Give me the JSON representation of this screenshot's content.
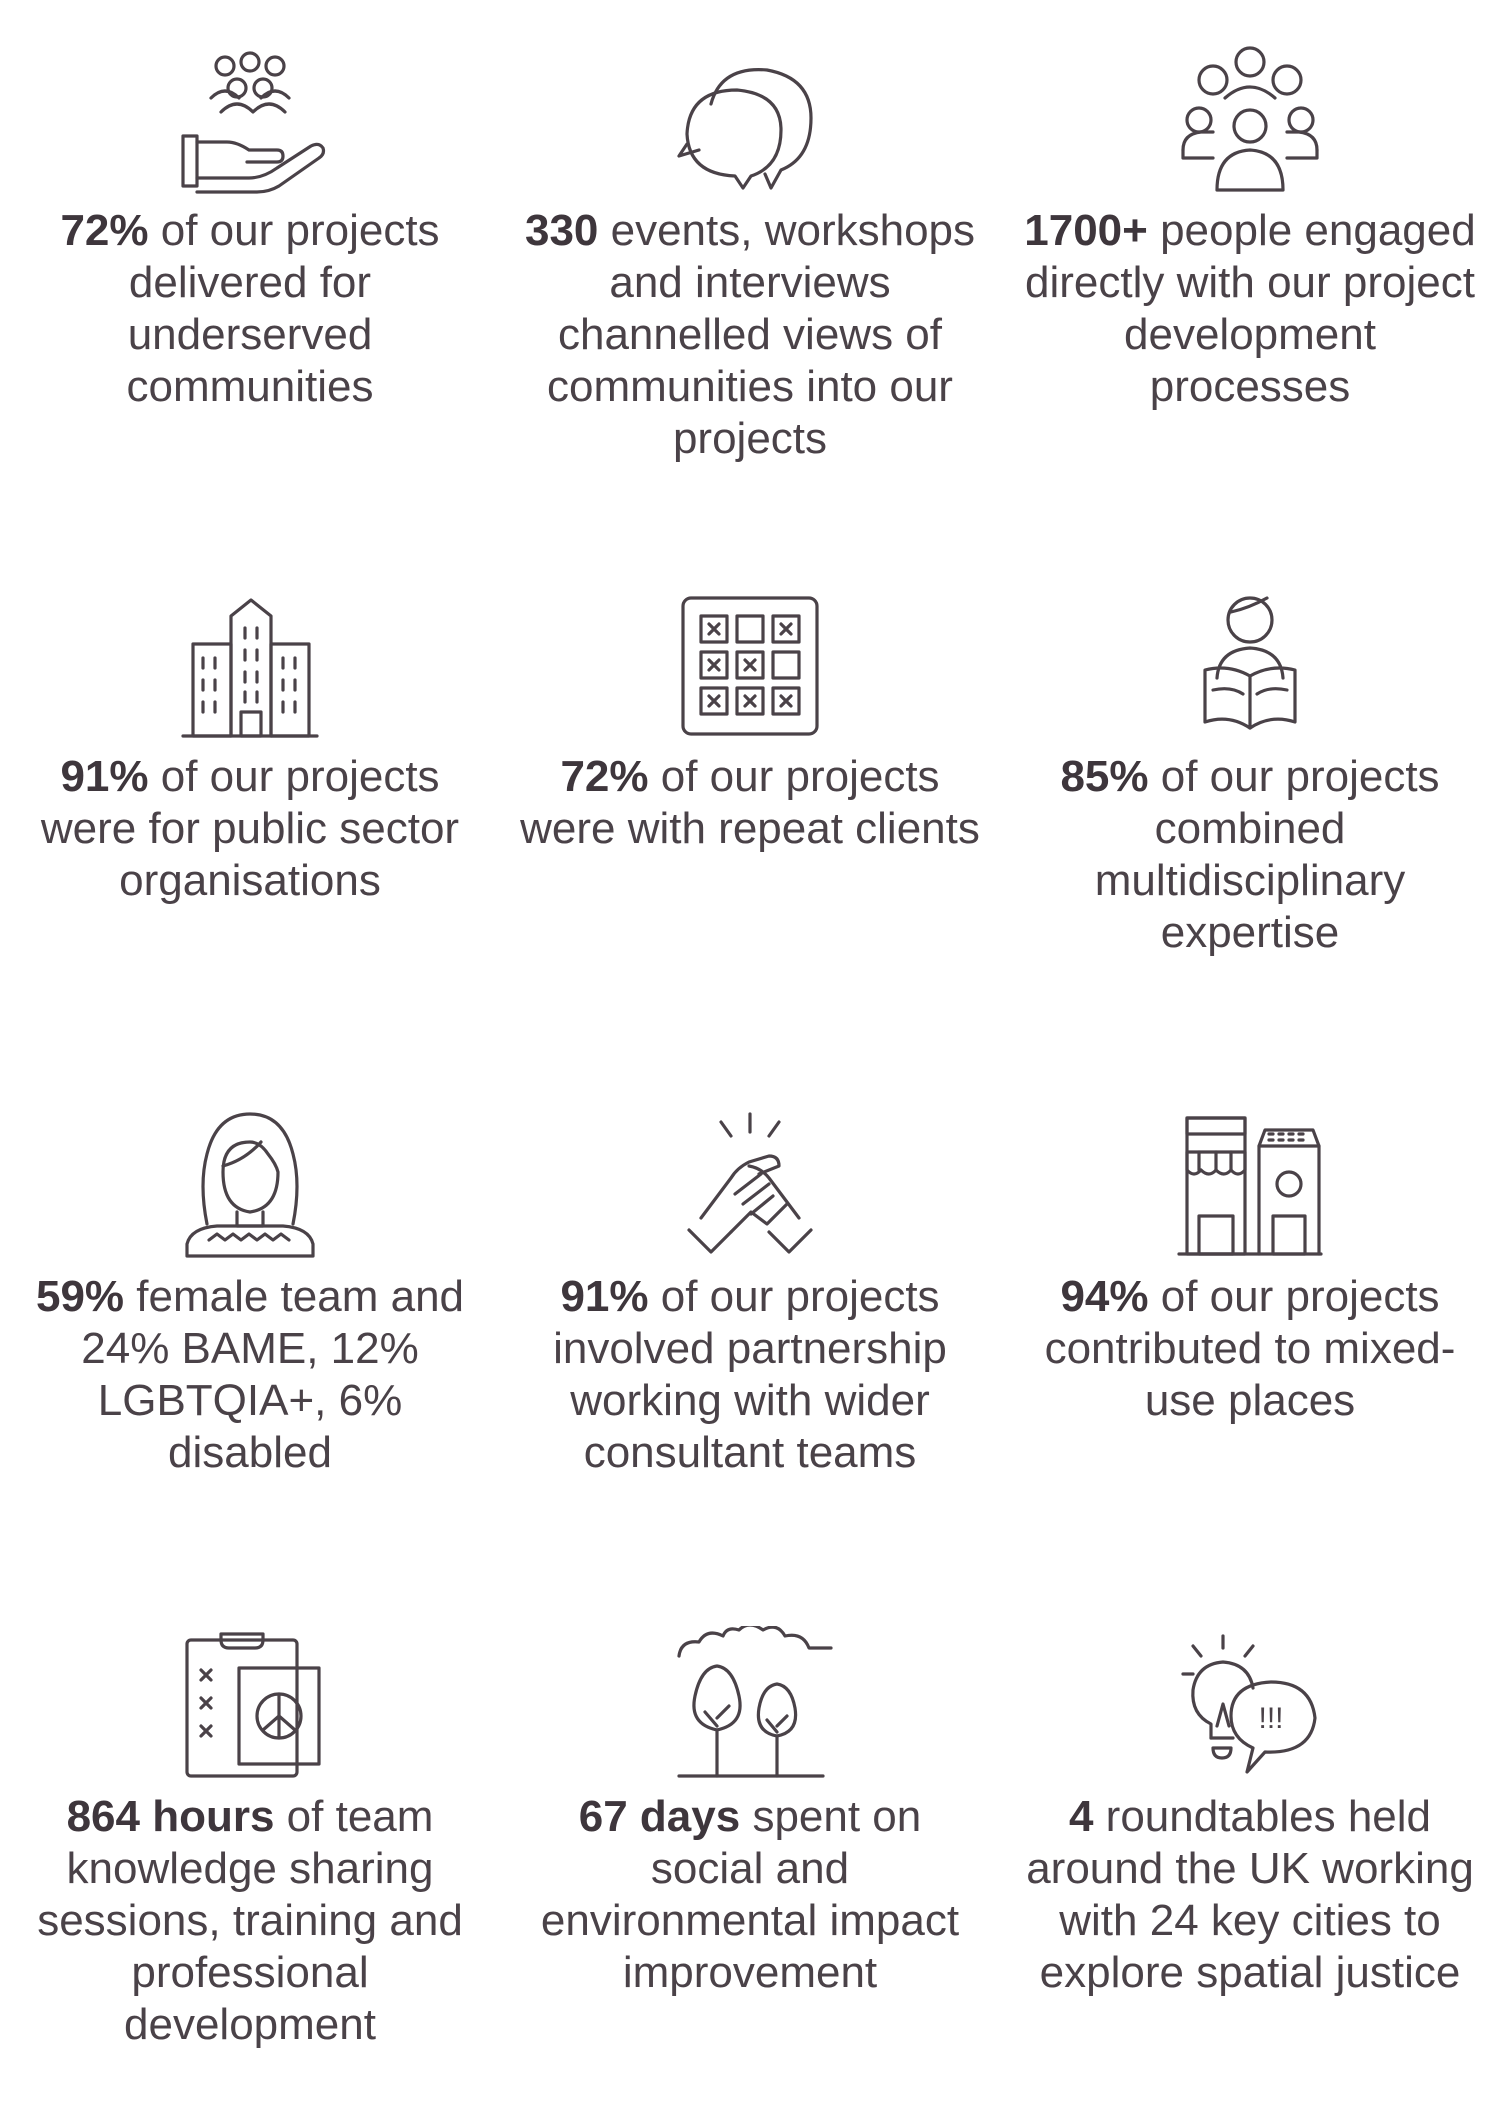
{
  "stats": [
    {
      "icon": "hand-community-icon",
      "bold": "72%",
      "text": " of our projects delivered for underserved communities"
    },
    {
      "icon": "speech-bubbles-icon",
      "bold": "330",
      "text": " events, workshops and interviews channelled views of communities into our projects"
    },
    {
      "icon": "people-group-icon",
      "bold": "1700+",
      "text": " people engaged directly with our project development processes"
    },
    {
      "icon": "buildings-icon",
      "bold": "91%",
      "text": " of our projects were for public sector organisations"
    },
    {
      "icon": "grid-checklist-icon",
      "bold": "72%",
      "text": " of our projects were with repeat clients"
    },
    {
      "icon": "person-reading-icon",
      "bold": "85%",
      "text": " of our projects combined multidisciplinary expertise"
    },
    {
      "icon": "woman-portrait-icon",
      "bold": "59%",
      "text": " female team and 24% BAME, 12% LGBTQIA+, 6% disabled"
    },
    {
      "icon": "handshake-icon",
      "bold": "91%",
      "text": " of our projects involved partnership working with wider consultant teams"
    },
    {
      "icon": "shopfronts-icon",
      "bold": "94%",
      "text": " of our projects contributed to mixed-use places"
    },
    {
      "icon": "clipboard-peace-icon",
      "bold": "864 hours",
      "text": " of team knowledge sharing sessions, training and professional development"
    },
    {
      "icon": "trees-clouds-icon",
      "bold": "67 days",
      "text": " spent on social and environmental impact improvement"
    },
    {
      "icon": "lightbulb-speech-icon",
      "bold": "4",
      "text": " roundtables held around the UK working with 24 key cities to explore spatial justice"
    }
  ],
  "glyphs": {
    "exclaim": "!!!"
  }
}
